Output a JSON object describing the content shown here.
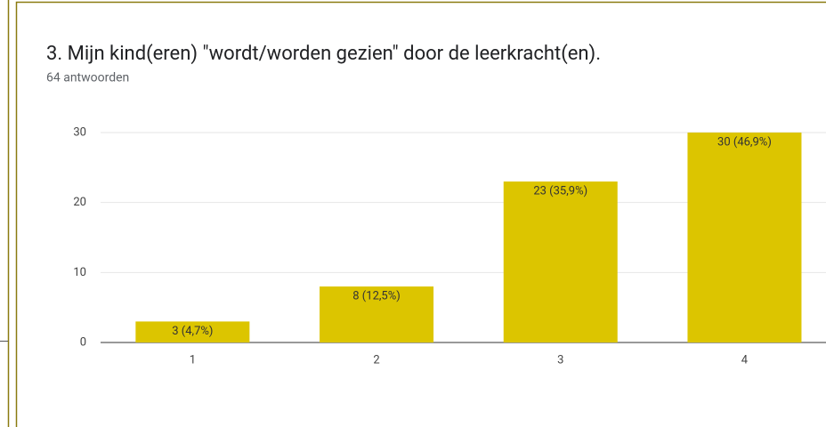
{
  "chart_data": {
    "type": "bar",
    "title": "3. Mijn kind(eren) \"wordt/worden gezien\" door de leerkracht(en).",
    "subtitle": "64 antwoorden",
    "categories": [
      "1",
      "2",
      "3",
      "4"
    ],
    "values": [
      3,
      8,
      23,
      30
    ],
    "value_labels": [
      "3 (4,7%)",
      "8 (12,5%)",
      "23 (35,9%)",
      "30 (46,9%)"
    ],
    "color": "#dcc500",
    "ylim": [
      0,
      30
    ],
    "yticks": [
      0,
      10,
      20,
      30
    ],
    "grid": true
  }
}
